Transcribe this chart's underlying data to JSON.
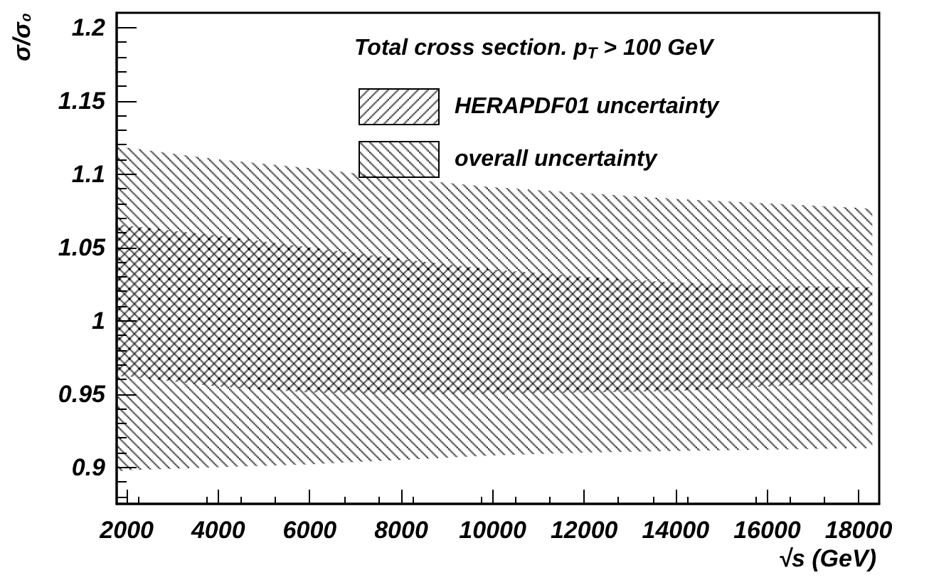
{
  "chart_data": {
    "type": "area",
    "legend_title": "Total cross section. p$_{T}$ > 100 GeV",
    "xlabel": "√s (GeV)",
    "ylabel": "σ/σ₀",
    "x": [
      1800,
      2000,
      4000,
      6000,
      8000,
      10000,
      12000,
      14000,
      16000,
      18000,
      18300
    ],
    "series": [
      {
        "name": "HERAPDF01 uncertainty",
        "color": "#000000",
        "values": [
          null,
          null,
          null,
          null,
          null,
          null,
          null,
          null,
          null,
          null,
          null
        ],
        "lower": [
          0.962,
          0.962,
          0.955,
          0.951,
          0.95,
          0.95,
          0.951,
          0.952,
          0.955,
          0.958,
          0.959
        ],
        "upper": [
          1.066,
          1.065,
          1.058,
          1.05,
          1.042,
          1.035,
          1.03,
          1.026,
          1.024,
          1.023,
          1.023
        ]
      },
      {
        "name": "overall uncertainty",
        "color": "#000000",
        "values": [
          null,
          null,
          null,
          null,
          null,
          null,
          null,
          null,
          null,
          null,
          null
        ],
        "lower": [
          0.897,
          0.898,
          0.9,
          0.902,
          0.905,
          0.908,
          0.91,
          0.911,
          0.912,
          0.913,
          0.913
        ],
        "upper": [
          1.12,
          1.118,
          1.11,
          1.104,
          1.097,
          1.091,
          1.087,
          1.083,
          1.08,
          1.077,
          1.076
        ]
      }
    ],
    "xlim": [
      1780,
      18450
    ],
    "ylim": [
      0.875,
      1.21
    ],
    "xticks": [
      2000,
      4000,
      6000,
      8000,
      10000,
      12000,
      14000,
      16000,
      18000
    ],
    "yticks": [
      0.9,
      0.95,
      1,
      1.05,
      1.1,
      1.15,
      1.2
    ],
    "legend": "top right",
    "grid": false
  }
}
